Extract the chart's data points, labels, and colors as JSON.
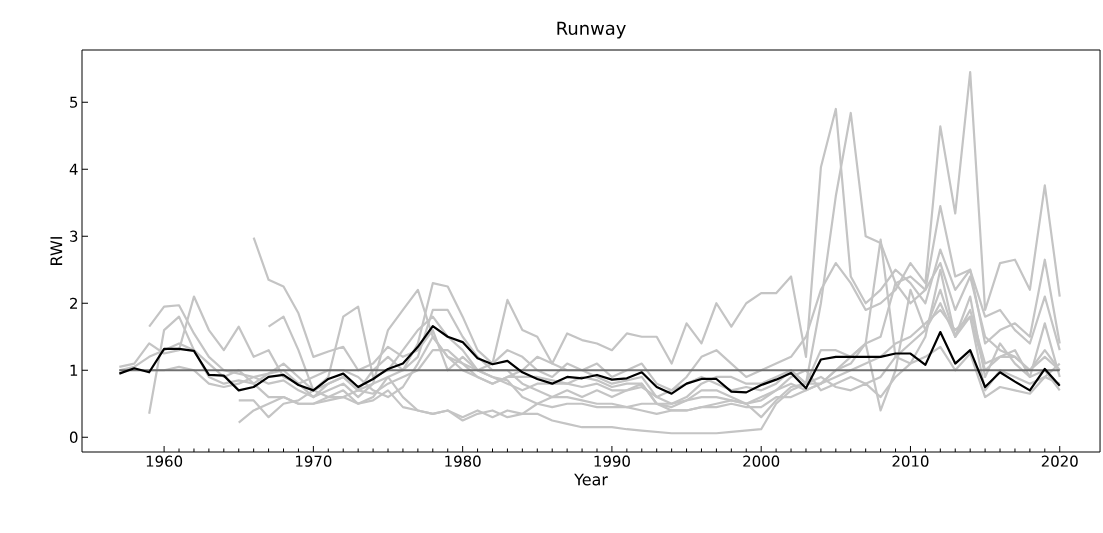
{
  "chart_data": {
    "type": "line",
    "title": "Runway",
    "xlabel": "Year",
    "ylabel": "RWI",
    "x": [
      1957,
      1958,
      1959,
      1960,
      1961,
      1962,
      1963,
      1964,
      1965,
      1966,
      1967,
      1968,
      1969,
      1970,
      1971,
      1972,
      1973,
      1974,
      1975,
      1976,
      1977,
      1978,
      1979,
      1980,
      1981,
      1982,
      1983,
      1984,
      1985,
      1986,
      1987,
      1988,
      1989,
      1990,
      1991,
      1992,
      1993,
      1994,
      1995,
      1996,
      1997,
      1998,
      1999,
      2000,
      2001,
      2002,
      2003,
      2004,
      2005,
      2006,
      2007,
      2008,
      2009,
      2010,
      2011,
      2012,
      2013,
      2014,
      2015,
      2016,
      2017,
      2018,
      2019,
      2020
    ],
    "xlim": [
      1954.5,
      2022.7
    ],
    "ylim": [
      -0.22,
      5.78
    ],
    "xticks": [
      1960,
      1970,
      1980,
      1990,
      2000,
      2010,
      2020
    ],
    "yticks": [
      0,
      1,
      2,
      3,
      4,
      5
    ],
    "series": [
      {
        "color": "#c4c4c4",
        "values": [
          null,
          null,
          1.65,
          1.95,
          1.97,
          1.55,
          1.2,
          1.0,
          0.95,
          0.9,
          0.8,
          0.85,
          0.7,
          0.6,
          0.7,
          0.8,
          0.6,
          0.8,
          1.6,
          1.9,
          2.2,
          1.5,
          1.2,
          1.0,
          0.9,
          0.8,
          0.9,
          1.0,
          1.2,
          1.1,
          1.0,
          1.0,
          1.1,
          0.9,
          1.0,
          1.1,
          0.8,
          0.7,
          0.9,
          1.2,
          1.3,
          1.1,
          0.9,
          1.0,
          1.1,
          1.2,
          1.5,
          2.2,
          2.6,
          2.3,
          1.9,
          2.0,
          2.2,
          2.6,
          2.3,
          4.64,
          3.34,
          5.45,
          1.9,
          2.6,
          2.65,
          2.2,
          3.76,
          2.1
        ]
      },
      {
        "color": "#c4c4c4",
        "values": [
          1.05,
          1.1,
          1.4,
          1.25,
          1.3,
          2.1,
          1.6,
          1.3,
          1.65,
          1.2,
          1.3,
          0.9,
          0.8,
          0.6,
          0.8,
          0.9,
          0.7,
          1.0,
          1.2,
          1.0,
          1.4,
          2.3,
          2.25,
          1.8,
          1.3,
          1.1,
          2.05,
          1.6,
          1.5,
          1.1,
          1.55,
          1.45,
          1.4,
          1.3,
          1.55,
          1.5,
          1.5,
          1.1,
          1.7,
          1.4,
          2.0,
          1.65,
          2.0,
          2.15,
          2.15,
          2.4,
          1.2,
          4.03,
          4.9,
          2.4,
          2.0,
          2.2,
          2.5,
          2.3,
          2.0,
          2.8,
          2.2,
          2.5,
          1.8,
          1.9,
          1.6,
          1.4,
          2.1,
          1.3
        ]
      },
      {
        "color": "#c4c4c4",
        "values": [
          null,
          null,
          0.35,
          1.6,
          1.8,
          1.3,
          1.1,
          0.9,
          1.0,
          0.8,
          0.6,
          0.6,
          0.5,
          0.5,
          0.6,
          0.7,
          0.5,
          0.6,
          0.9,
          1.0,
          1.2,
          1.9,
          1.9,
          1.5,
          1.2,
          1.0,
          1.0,
          0.8,
          0.7,
          0.6,
          0.7,
          0.6,
          0.7,
          0.6,
          0.7,
          0.8,
          0.5,
          0.5,
          0.6,
          0.8,
          0.9,
          0.9,
          0.8,
          0.8,
          0.9,
          1.0,
          0.8,
          2.0,
          3.6,
          4.84,
          3.0,
          2.9,
          2.3,
          2.0,
          2.2,
          3.45,
          2.4,
          2.5,
          1.4,
          1.6,
          1.7,
          1.5,
          2.65,
          1.4
        ]
      },
      {
        "color": "#c4c4c4",
        "values": [
          null,
          null,
          null,
          null,
          null,
          null,
          null,
          null,
          null,
          2.98,
          2.35,
          2.25,
          1.85,
          1.2,
          1.28,
          1.35,
          1.0,
          1.1,
          1.35,
          1.2,
          1.3,
          1.6,
          1.0,
          1.2,
          1.0,
          1.1,
          1.3,
          1.2,
          1.0,
          0.9,
          1.1,
          1.0,
          0.9,
          0.8,
          0.85,
          0.9,
          0.6,
          0.7,
          0.8,
          0.9,
          0.8,
          0.7,
          0.75,
          0.7,
          0.8,
          1.0,
          0.8,
          1.3,
          1.3,
          1.2,
          1.4,
          2.95,
          1.2,
          1.1,
          1.5,
          2.5,
          1.5,
          2.1,
          0.9,
          1.4,
          1.1,
          0.9,
          1.7,
          0.9
        ]
      },
      {
        "color": "#c4c4c4",
        "values": [
          null,
          null,
          null,
          null,
          null,
          null,
          null,
          null,
          0.22,
          0.4,
          0.5,
          0.6,
          0.5,
          0.5,
          0.55,
          0.6,
          0.5,
          0.55,
          0.7,
          0.45,
          0.4,
          0.35,
          0.4,
          0.25,
          0.35,
          0.4,
          0.3,
          0.35,
          0.35,
          0.25,
          0.2,
          0.15,
          0.15,
          0.15,
          0.12,
          0.1,
          0.08,
          0.06,
          0.06,
          0.06,
          0.06,
          0.08,
          0.1,
          0.12,
          0.5,
          0.7,
          0.8,
          0.8,
          1.0,
          1.1,
          1.4,
          0.4,
          1.0,
          2.2,
          1.6,
          2.0,
          1.5,
          1.8,
          0.7,
          1.0,
          0.9,
          0.8,
          0.9,
          0.8
        ]
      },
      {
        "color": "#c4c4c4",
        "values": [
          null,
          null,
          null,
          null,
          null,
          null,
          null,
          null,
          null,
          null,
          1.65,
          1.8,
          1.3,
          0.7,
          0.8,
          0.9,
          0.7,
          0.8,
          0.9,
          0.6,
          0.4,
          0.35,
          0.4,
          0.3,
          0.4,
          0.3,
          0.4,
          0.35,
          0.5,
          0.6,
          0.6,
          0.55,
          0.5,
          0.5,
          0.45,
          0.4,
          0.35,
          0.4,
          0.4,
          0.45,
          0.45,
          0.5,
          0.45,
          0.45,
          0.6,
          0.6,
          0.7,
          0.8,
          0.9,
          1.0,
          1.1,
          1.2,
          1.4,
          1.5,
          1.7,
          1.9,
          1.6,
          1.8,
          1.0,
          1.2,
          1.2,
          1.0,
          1.3,
          1.0
        ]
      },
      {
        "color": "#c4c4c4",
        "values": [
          1.0,
          1.05,
          1.2,
          1.3,
          1.4,
          1.3,
          0.9,
          0.8,
          0.85,
          0.8,
          0.95,
          1.1,
          0.9,
          0.7,
          0.9,
          1.8,
          1.95,
          0.9,
          1.0,
          1.3,
          1.6,
          1.8,
          1.5,
          1.3,
          1.0,
          0.9,
          0.8,
          0.7,
          0.8,
          0.8,
          0.8,
          0.75,
          0.8,
          0.7,
          0.7,
          0.75,
          0.6,
          0.5,
          0.55,
          0.6,
          0.6,
          0.55,
          0.5,
          0.55,
          0.7,
          0.8,
          0.7,
          0.8,
          1.0,
          1.2,
          1.4,
          1.5,
          2.3,
          2.4,
          2.2,
          2.6,
          1.9,
          2.4,
          1.5,
          1.3,
          1.2,
          1.0,
          1.2,
          1.0
        ]
      },
      {
        "color": "#c4c4c4",
        "values": [
          null,
          null,
          null,
          null,
          null,
          null,
          null,
          null,
          0.55,
          0.55,
          0.3,
          0.5,
          0.55,
          0.7,
          0.6,
          0.6,
          0.7,
          0.65,
          0.8,
          0.9,
          1.0,
          1.3,
          1.3,
          1.1,
          0.9,
          0.8,
          0.9,
          0.9,
          0.9,
          0.85,
          0.8,
          0.9,
          0.85,
          0.75,
          0.8,
          0.8,
          0.5,
          0.45,
          0.55,
          0.7,
          0.7,
          0.6,
          0.5,
          0.6,
          0.7,
          0.9,
          1.0,
          0.7,
          0.8,
          0.9,
          0.8,
          0.9,
          1.2,
          1.4,
          1.6,
          2.2,
          1.5,
          1.9,
          1.1,
          1.2,
          1.3,
          0.9,
          1.0,
          0.7
        ]
      },
      {
        "color": "#c4c4c4",
        "values": [
          null,
          null,
          1.0,
          1.0,
          1.05,
          1.0,
          0.8,
          0.75,
          0.8,
          0.9,
          0.95,
          1.0,
          0.8,
          0.9,
          1.0,
          1.0,
          0.9,
          0.7,
          0.6,
          0.75,
          1.1,
          1.5,
          1.2,
          1.1,
          1.0,
          0.9,
          0.85,
          0.6,
          0.5,
          0.45,
          0.5,
          0.5,
          0.45,
          0.45,
          0.45,
          0.5,
          0.5,
          0.4,
          0.4,
          0.45,
          0.5,
          0.55,
          0.5,
          0.3,
          0.55,
          0.75,
          0.8,
          0.9,
          0.75,
          0.7,
          0.8,
          0.6,
          0.9,
          1.1,
          1.2,
          1.35,
          1.0,
          1.25,
          0.6,
          0.75,
          0.7,
          0.65,
          0.9,
          1.1
        ]
      },
      {
        "color": "#707070",
        "x": [
          1957,
          2020
        ],
        "values": [
          1,
          1
        ]
      },
      {
        "color": "#000000",
        "values": [
          0.95,
          1.03,
          0.97,
          1.32,
          1.32,
          1.29,
          0.93,
          0.92,
          0.7,
          0.75,
          0.9,
          0.93,
          0.78,
          0.7,
          0.87,
          0.95,
          0.75,
          0.87,
          1.02,
          1.1,
          1.35,
          1.66,
          1.5,
          1.42,
          1.18,
          1.09,
          1.14,
          0.97,
          0.87,
          0.8,
          0.9,
          0.88,
          0.93,
          0.86,
          0.88,
          0.97,
          0.75,
          0.65,
          0.8,
          0.87,
          0.87,
          0.68,
          0.67,
          0.78,
          0.86,
          0.96,
          0.73,
          1.16,
          1.2,
          1.2,
          1.2,
          1.2,
          1.25,
          1.25,
          1.08,
          1.57,
          1.1,
          1.3,
          0.75,
          0.97,
          0.83,
          0.7,
          1.02,
          0.77
        ]
      }
    ]
  }
}
